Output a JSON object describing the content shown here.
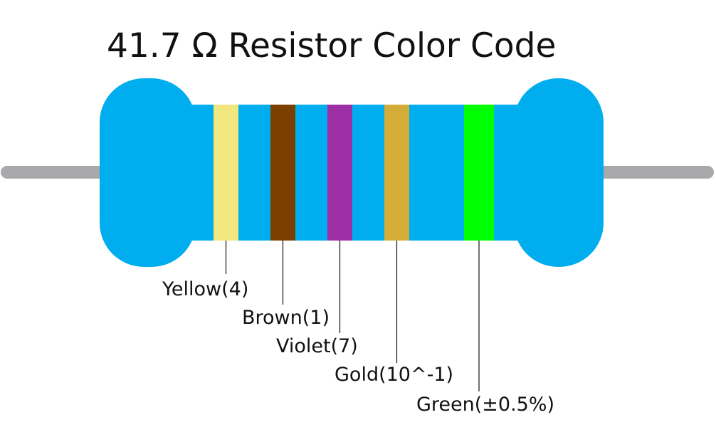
{
  "title": "41.7 Ω Resistor Color Code",
  "bands": [
    {
      "label": "Yellow(4)",
      "color": "#f2e77e"
    },
    {
      "label": "Brown(1)",
      "color": "#7b4000"
    },
    {
      "label": "Violet(7)",
      "color": "#9b2fa3"
    },
    {
      "label": "Gold(10^-1)",
      "color": "#d4ad38"
    },
    {
      "label": "Green(±0.5%)",
      "color": "#00ff00"
    }
  ]
}
